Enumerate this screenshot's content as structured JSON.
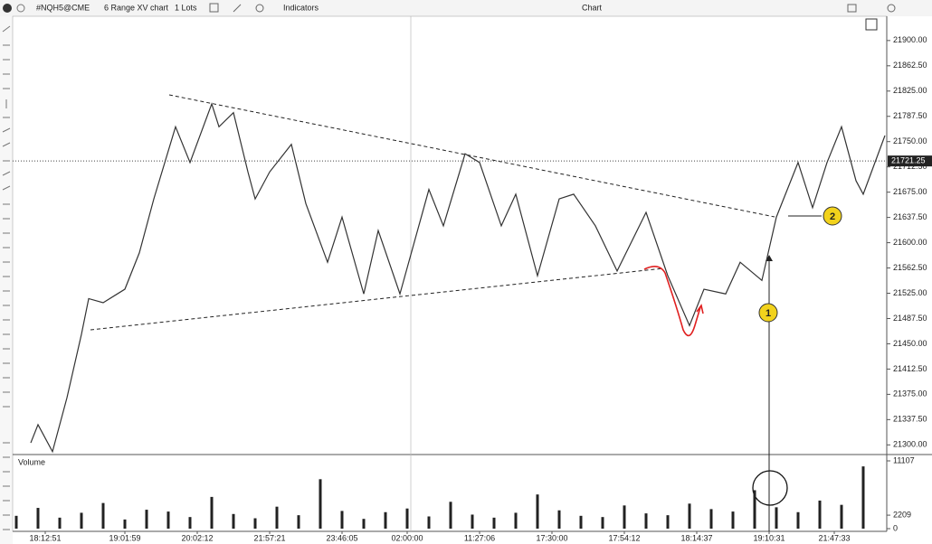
{
  "toolbar": {
    "symbol": "#NQH5@CME",
    "chart_type": "6 Range XV chart",
    "lots": "1 Lots",
    "indicators": "Indicators",
    "title": "Chart"
  },
  "chart_data": [
    {
      "type": "line",
      "x": [
        2,
        3,
        5,
        7,
        9,
        10,
        12,
        15,
        17,
        19,
        22,
        24,
        27,
        28,
        30,
        32,
        33,
        35,
        38,
        40,
        43,
        45,
        48,
        50,
        53,
        57,
        59,
        62,
        64,
        67,
        69,
        72,
        75,
        77,
        80,
        83,
        87,
        90,
        93,
        95,
        98,
        100,
        103,
        105,
        108,
        110,
        112,
        114,
        116,
        117,
        120
      ],
      "series": [
        {
          "color": "#333333",
          "values": [
            21303,
            21330,
            21290,
            21370,
            21464,
            21517,
            21511,
            21531,
            21585,
            21665,
            21772,
            21719,
            21806,
            21772,
            21793,
            21705,
            21665,
            21705,
            21746,
            21658,
            21571,
            21638,
            21524,
            21618,
            21524,
            21679,
            21625,
            21732,
            21719,
            21625,
            21672,
            21551,
            21665,
            21672,
            21625,
            21558,
            21645,
            21551,
            21477,
            21531,
            21524,
            21571,
            21544,
            21638,
            21719,
            21652,
            21719,
            21772,
            21692,
            21672,
            21759
          ]
        }
      ],
      "last_price": 21721.25,
      "xlim": [
        0,
        120
      ],
      "xticks": [
        {
          "value": 4,
          "label": "18:12:51"
        },
        {
          "value": 15,
          "label": "19:01:59"
        },
        {
          "value": 25,
          "label": "20:02:12"
        },
        {
          "value": 35,
          "label": "21:57:21"
        },
        {
          "value": 45,
          "label": "23:46:05"
        },
        {
          "value": 54,
          "label": "02:00:00"
        },
        {
          "value": 64,
          "label": "11:27:06"
        },
        {
          "value": 74,
          "label": "17:30:00"
        },
        {
          "value": 84,
          "label": "17:54:12"
        },
        {
          "value": 94,
          "label": "18:14:37"
        },
        {
          "value": 104,
          "label": "19:10:31"
        },
        {
          "value": 113,
          "label": "21:47:33"
        }
      ],
      "ylim": [
        21287,
        21936
      ],
      "yticks": [
        {
          "value": 21300,
          "label": "21300.00"
        },
        {
          "value": 21337.5,
          "label": "21337.50"
        },
        {
          "value": 21375,
          "label": "21375.00"
        },
        {
          "value": 21412.5,
          "label": "21412.50"
        },
        {
          "value": 21450,
          "label": "21450.00"
        },
        {
          "value": 21487.5,
          "label": "21487.50"
        },
        {
          "value": 21525,
          "label": "21525.00"
        },
        {
          "value": 21562.5,
          "label": "21562.50"
        },
        {
          "value": 21600,
          "label": "21600.00"
        },
        {
          "value": 21637.5,
          "label": "21637.50"
        },
        {
          "value": 21675,
          "label": "21675.00"
        },
        {
          "value": 21712.5,
          "label": "21712.50"
        },
        {
          "value": 21750,
          "label": "21750.00"
        },
        {
          "value": 21787.5,
          "label": "21787.50"
        },
        {
          "value": 21825,
          "label": "21825.00"
        },
        {
          "value": 21862.5,
          "label": "21862.50"
        },
        {
          "value": 21900,
          "label": "21900.00"
        }
      ],
      "annotations": [
        "1",
        "2"
      ]
    },
    {
      "type": "bar",
      "title": "Volume",
      "color": "#222222",
      "x": [
        0,
        3,
        6,
        9,
        12,
        15,
        18,
        21,
        24,
        27,
        30,
        33,
        36,
        39,
        42,
        45,
        48,
        51,
        54,
        57,
        60,
        63,
        66,
        69,
        72,
        75,
        78,
        81,
        84,
        87,
        90,
        93,
        96,
        99,
        102,
        105,
        108,
        111,
        114,
        117
      ],
      "values": [
        2100,
        3400,
        1800,
        2600,
        4200,
        1500,
        3100,
        2800,
        1900,
        5200,
        2400,
        1700,
        3600,
        2200,
        8100,
        2900,
        1600,
        2700,
        3300,
        2000,
        4400,
        2300,
        1800,
        2600,
        5600,
        3000,
        2100,
        1900,
        3800,
        2500,
        2200,
        4100,
        3200,
        2800,
        6300,
        3500,
        2700,
        4600,
        3900,
        10200
      ],
      "ylim": [
        0,
        11107
      ],
      "yticks": [
        0,
        2209,
        11107
      ]
    }
  ]
}
